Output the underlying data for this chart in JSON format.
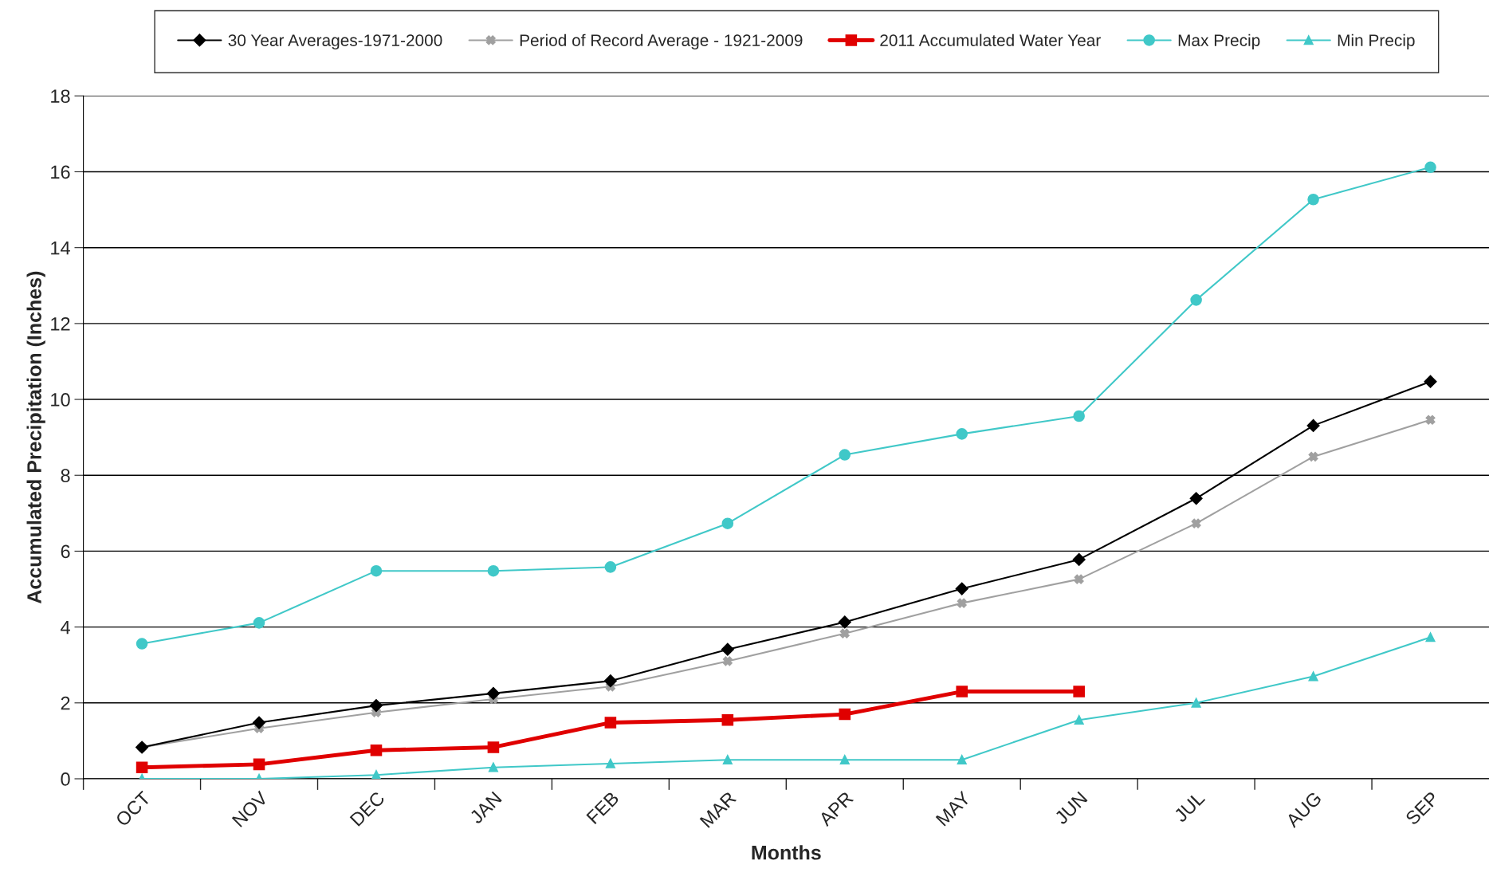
{
  "chart_data": {
    "type": "line",
    "xlabel": "Months",
    "ylabel": "Accumulated Precipitation (Inches)",
    "categories": [
      "OCT",
      "NOV",
      "DEC",
      "JAN",
      "FEB",
      "MAR",
      "APR",
      "MAY",
      "JUN",
      "JUL",
      "AUG",
      "SEP"
    ],
    "series": [
      {
        "name": "30 Year Averages-1971-2000",
        "color": "#000000",
        "marker": "diamond",
        "values": [
          0.83,
          1.48,
          1.93,
          2.25,
          2.58,
          3.41,
          4.13,
          5.01,
          5.78,
          7.39,
          9.31,
          10.47
        ]
      },
      {
        "name": "Period of Record Average - 1921-2009",
        "color": "#a0a0a0",
        "marker": "cross",
        "values": [
          0.83,
          1.33,
          1.75,
          2.1,
          2.43,
          3.1,
          3.83,
          4.63,
          5.26,
          6.73,
          8.49,
          9.46
        ]
      },
      {
        "name": "2011 Accumulated Water Year",
        "color": "#e00000",
        "marker": "square",
        "values": [
          0.3,
          0.38,
          0.75,
          0.83,
          1.48,
          1.55,
          1.7,
          2.3,
          2.3,
          null,
          null,
          null
        ]
      },
      {
        "name": "Max Precip",
        "color": "#40c8c8",
        "marker": "circle",
        "values": [
          3.56,
          4.11,
          5.48,
          5.48,
          5.58,
          6.73,
          8.54,
          9.09,
          9.56,
          12.62,
          15.27,
          16.12
        ]
      },
      {
        "name": "Min Precip",
        "color": "#40c8c8",
        "marker": "triangle",
        "values": [
          0,
          0,
          0.1,
          0.3,
          0.4,
          0.5,
          0.5,
          0.5,
          1.55,
          2.0,
          2.7,
          3.73
        ]
      }
    ],
    "ylim": [
      0,
      18
    ],
    "yticks": [
      0,
      2,
      4,
      6,
      8,
      10,
      12,
      14,
      16,
      18
    ],
    "grid": "y",
    "legend": "top",
    "line_style": "solid"
  }
}
